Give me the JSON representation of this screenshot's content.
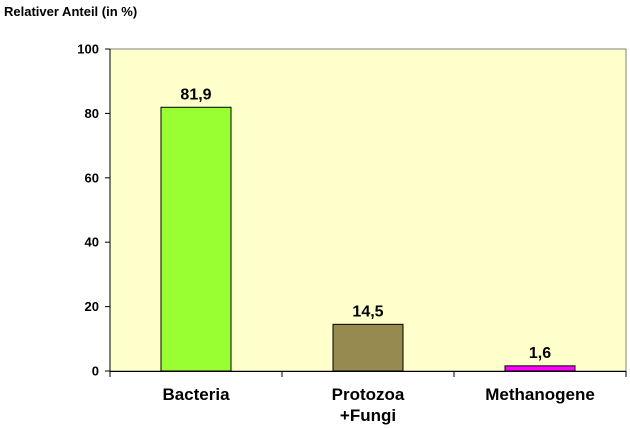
{
  "chart_data": {
    "type": "bar",
    "title": "",
    "xlabel": "",
    "ylabel": "Relativer Anteil (in %)",
    "ylim": [
      0,
      100
    ],
    "yticks": [
      0,
      20,
      40,
      60,
      80,
      100
    ],
    "grid": false,
    "legend": "none",
    "plot_background": "#FFFFCC",
    "categories": [
      {
        "lines": [
          "Bacteria"
        ]
      },
      {
        "lines": [
          "Protozoa",
          "+Fungi"
        ]
      },
      {
        "lines": [
          "Methanogene"
        ]
      }
    ],
    "values": [
      81.9,
      14.5,
      1.6
    ],
    "data_labels": [
      "81,9",
      "14,5",
      "1,6"
    ],
    "colors": [
      "#99FF33",
      "#968A4F",
      "#FF00FF"
    ]
  }
}
